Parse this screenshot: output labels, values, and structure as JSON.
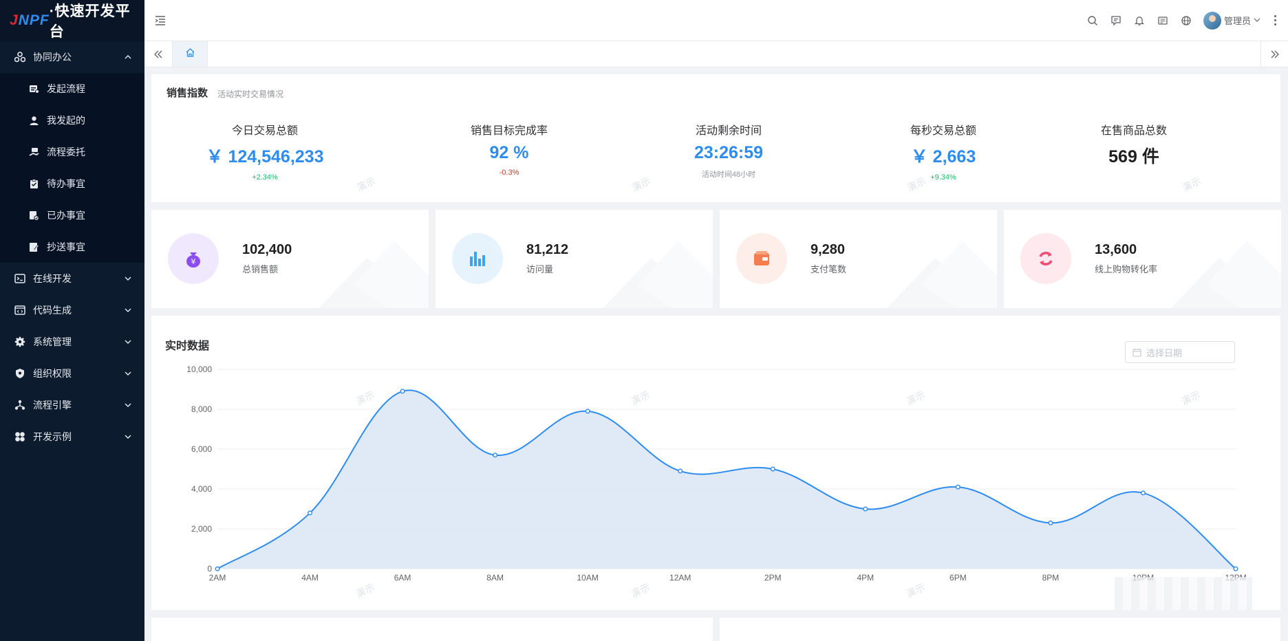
{
  "logo": {
    "prefix_red": "J",
    "prefix_blue": "NPF",
    "title": "·快速开发平台"
  },
  "sidebar": {
    "groups": [
      {
        "label": "协同办公",
        "icon": "collaboration-icon",
        "expanded": true,
        "items": [
          {
            "label": "发起流程",
            "icon": "launch-flow-icon"
          },
          {
            "label": "我发起的",
            "icon": "user-icon"
          },
          {
            "label": "流程委托",
            "icon": "delegate-icon"
          },
          {
            "label": "待办事宜",
            "icon": "todo-icon"
          },
          {
            "label": "已办事宜",
            "icon": "done-icon"
          },
          {
            "label": "抄送事宜",
            "icon": "cc-icon"
          }
        ]
      },
      {
        "label": "在线开发",
        "icon": "terminal-icon",
        "expanded": false
      },
      {
        "label": "代码生成",
        "icon": "code-icon",
        "expanded": false
      },
      {
        "label": "系统管理",
        "icon": "gear-icon",
        "expanded": false
      },
      {
        "label": "组织权限",
        "icon": "shield-icon",
        "expanded": false
      },
      {
        "label": "流程引擎",
        "icon": "flow-engine-icon",
        "expanded": false
      },
      {
        "label": "开发示例",
        "icon": "clover-icon",
        "expanded": false
      }
    ]
  },
  "header": {
    "user_name": "管理员"
  },
  "sales_index": {
    "title": "销售指数",
    "subtitle": "活动实时交易情况",
    "stats": [
      {
        "label": "今日交易总额",
        "value": "￥ 124,546,233",
        "note": "+2.34%",
        "note_type": "green"
      },
      {
        "label": "销售目标完成率",
        "value": "92 %",
        "note": "-0.3%",
        "note_type": "red"
      },
      {
        "label": "活动剩余时间",
        "value": "23:26:59",
        "note": "活动时间48小时",
        "note_type": "gray"
      },
      {
        "label": "每秒交易总额",
        "value": "￥ 2,663",
        "note": "+9.34%",
        "note_type": "green"
      },
      {
        "label": "在售商品总数",
        "value": "569 件",
        "note": "",
        "note_type": "dark"
      }
    ]
  },
  "watermark": "演示",
  "kpis": [
    {
      "value": "102,400",
      "label": "总销售额",
      "icon": "money-bag-icon",
      "bg": "#f0e8fd",
      "fg": "#8a4df0"
    },
    {
      "value": "81,212",
      "label": "访问量",
      "icon": "bar-chart-icon",
      "bg": "#e6f3fd",
      "fg": "#3ba3f5"
    },
    {
      "value": "9,280",
      "label": "支付笔数",
      "icon": "wallet-icon",
      "bg": "#fdeee9",
      "fg": "#f57c4e"
    },
    {
      "value": "13,600",
      "label": "线上购物转化率",
      "icon": "refresh-icon",
      "bg": "#fde9ee",
      "fg": "#ef4d74"
    }
  ],
  "realtime": {
    "title": "实时数据",
    "date_placeholder": "选择日期"
  },
  "chart_data": {
    "type": "area",
    "x": [
      "2AM",
      "4AM",
      "6AM",
      "8AM",
      "10AM",
      "12AM",
      "2PM",
      "4PM",
      "6PM",
      "8PM",
      "10PM",
      "12PM"
    ],
    "series": [
      {
        "values": [
          0,
          2800,
          8900,
          5700,
          7900,
          4900,
          5000,
          3000,
          4100,
          2300,
          3800,
          0
        ]
      }
    ],
    "ylim": [
      0,
      10000
    ],
    "yticks": [
      "0",
      "2,000",
      "4,000",
      "6,000",
      "8,000",
      "10,000"
    ],
    "colors": {
      "line": "#2d8cf0",
      "fill": "#dce8f5"
    },
    "grid": true
  }
}
